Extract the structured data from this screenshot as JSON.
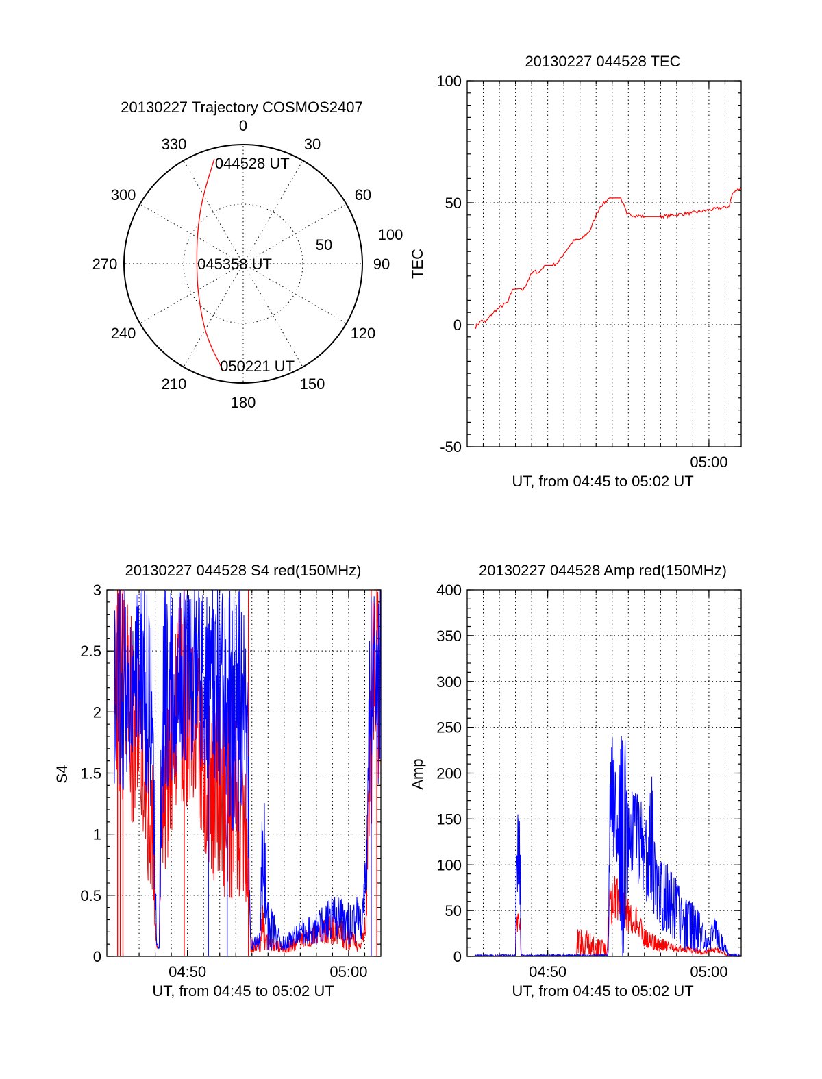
{
  "chart_data": [
    {
      "type": "polar",
      "title": "20130227 Trajectory COSMOS2407",
      "rlim": [
        0,
        100
      ],
      "angle_ticks": [
        "0",
        "30",
        "60",
        "90",
        "120",
        "150",
        "180",
        "210",
        "240",
        "270",
        "300",
        "330"
      ],
      "radial_ticks": [
        "50",
        "100"
      ],
      "grid": true,
      "series": [
        {
          "color": "#ff0000",
          "points": [
            {
              "az": 344.6,
              "r": 91.2
            },
            {
              "az": 327.7,
              "r": 64.6
            },
            {
              "az": 303.9,
              "r": 46.4
            },
            {
              "az": 270.0,
              "r": 39.0
            },
            {
              "az": 235.7,
              "r": 45.9
            },
            {
              "az": 207.6,
              "r": 68.1
            },
            {
              "az": 190.9,
              "r": 90.7
            }
          ]
        }
      ],
      "annotations": [
        {
          "text": "044528 UT",
          "az": 344.6,
          "r": 91.2
        },
        {
          "text": "045358 UT",
          "az": 270.0,
          "r": 39.0
        },
        {
          "text": "050221 UT",
          "az": 190.9,
          "r": 90.7
        }
      ]
    },
    {
      "type": "line",
      "title": "20130227 044528 TEC",
      "xlabel": "UT, from 04:45 to 05:02 UT",
      "ylabel": "TEC",
      "xlim": [
        "04:45:00",
        "05:02:00"
      ],
      "ylim": [
        -50,
        100
      ],
      "yticks": [
        "-50",
        "0",
        "50",
        "100"
      ],
      "xticks": [
        {
          "t": "05:00:00",
          "label": "05:00"
        }
      ],
      "grid": true,
      "series": [
        {
          "color": "#ff0000",
          "x": [
            "04:45:28",
            "04:45:55",
            "04:46:08",
            "04:46:33",
            "04:46:59",
            "04:47:32",
            "04:47:49",
            "04:48:21",
            "04:48:28",
            "04:48:53",
            "04:49:10",
            "04:49:27",
            "04:49:48",
            "04:50:18",
            "04:50:39",
            "04:51:00",
            "04:51:34",
            "04:52:08",
            "04:52:38",
            "04:52:59",
            "04:53:16",
            "04:53:50",
            "04:54:32",
            "04:54:40",
            "04:54:55",
            "04:56:05",
            "04:56:56",
            "04:58:54",
            "05:01:14",
            "05:01:28",
            "05:02:00"
          ],
          "y": [
            -1.2,
            2,
            1,
            4.6,
            7,
            9.3,
            14.5,
            14.8,
            14,
            19.7,
            22,
            21.4,
            24.3,
            24.3,
            25.5,
            29.2,
            34.2,
            35.3,
            38.8,
            44.6,
            48.6,
            52,
            52,
            49.8,
            45.2,
            44.3,
            44.3,
            45.8,
            48.4,
            53.9,
            56.4
          ]
        }
      ]
    },
    {
      "type": "line",
      "title": "20130227 044528 S4 red(150MHz)",
      "xlabel": "UT, from 04:45 to 05:02 UT",
      "ylabel": "S4",
      "xlim": [
        "04:45:00",
        "05:02:00"
      ],
      "ylim": [
        0,
        3
      ],
      "yticks": [
        "0",
        "0.5",
        "1",
        "1.5",
        "2",
        "2.5",
        "3"
      ],
      "xticks": [
        {
          "t": "04:50:00",
          "label": "04:50"
        },
        {
          "t": "05:00:00",
          "label": "05:00"
        }
      ],
      "grid": true,
      "series": [
        {
          "color": "#ff0000",
          "x": [
            "04:45:28",
            "04:46:00",
            "04:46:30",
            "04:47:00",
            "04:47:20",
            "04:47:50",
            "04:48:05",
            "04:48:15",
            "04:48:20",
            "04:48:40",
            "04:49:00",
            "04:49:30",
            "04:50:00",
            "04:50:30",
            "04:51:00",
            "04:51:30",
            "04:52:00",
            "04:52:30",
            "04:53:00",
            "04:53:30",
            "04:53:47",
            "04:53:55",
            "04:54:30",
            "04:54:40",
            "04:54:48",
            "04:56:00",
            "04:57:00",
            "04:58:00",
            "04:59:00",
            "05:00:00",
            "05:00:45",
            "05:01:05",
            "05:01:20",
            "05:01:58"
          ],
          "low": [
            1.5,
            1.2,
            1.0,
            1.3,
            0.7,
            0.5,
            0.04,
            0.04,
            0.4,
            0.7,
            1.0,
            1.3,
            1.2,
            1.3,
            0.9,
            0.6,
            0.6,
            0.4,
            0.5,
            0.4,
            0.5,
            0.03,
            0.03,
            0.1,
            0.05,
            0.03,
            0.05,
            0.1,
            0.1,
            0.05,
            0.03,
            0.2,
            1.0,
            1.5
          ],
          "high": [
            3,
            3,
            2.8,
            2.5,
            2.0,
            1.6,
            0.1,
            0.1,
            1.5,
            1.8,
            2.8,
            3,
            2.6,
            2.6,
            2.2,
            2.0,
            2.2,
            2.3,
            2.0,
            1.6,
            1.5,
            0.15,
            0.15,
            0.6,
            0.2,
            0.1,
            0.2,
            0.25,
            0.35,
            0.25,
            0.1,
            0.5,
            3,
            3
          ],
          "spikes": [
            "04:45:40",
            "04:45:50",
            "04:46:00",
            "04:49:48",
            "04:53:47",
            "05:01:24",
            "05:01:45"
          ]
        },
        {
          "color": "#0000ff",
          "x": [
            "04:45:28",
            "04:46:00",
            "04:46:30",
            "04:47:00",
            "04:47:30",
            "04:47:50",
            "04:48:05",
            "04:48:15",
            "04:48:25",
            "04:48:50",
            "04:49:30",
            "04:50:00",
            "04:50:30",
            "04:51:00",
            "04:51:30",
            "04:52:00",
            "04:52:30",
            "04:53:00",
            "04:53:30",
            "04:53:47",
            "04:53:55",
            "04:54:30",
            "04:54:38",
            "04:54:45",
            "04:54:52",
            "04:56:00",
            "04:57:00",
            "04:58:00",
            "04:59:00",
            "05:00:00",
            "05:00:30",
            "05:00:50",
            "05:01:10",
            "05:01:20",
            "05:01:58"
          ],
          "low": [
            1.4,
            1.35,
            1.6,
            1.8,
            1.3,
            1.1,
            0.06,
            0.06,
            0.9,
            1.3,
            1.5,
            1.6,
            1.6,
            1.5,
            1.4,
            1.4,
            1.2,
            0.9,
            1.1,
            0.8,
            0.05,
            0.05,
            0.3,
            0.5,
            0.05,
            0.05,
            0.1,
            0.1,
            0.15,
            0.1,
            0.1,
            0.15,
            0.6,
            1.5,
            1.3
          ],
          "high": [
            3,
            3,
            3,
            3,
            3,
            2.6,
            0.12,
            0.12,
            3,
            3,
            3,
            3,
            3,
            3,
            3,
            3,
            3,
            3,
            3,
            2.0,
            0.15,
            0.2,
            1.3,
            2.28,
            0.5,
            0.15,
            0.3,
            0.35,
            0.5,
            0.45,
            0.5,
            0.35,
            1.2,
            3,
            3
          ],
          "drops": [
            "04:51:18",
            "04:52:28",
            "05:01:24"
          ]
        }
      ]
    },
    {
      "type": "line",
      "title": "20130227 044528 Amp red(150MHz)",
      "xlabel": "UT, from 04:45 to 05:02 UT",
      "ylabel": "Amp",
      "xlim": [
        "04:45:00",
        "05:02:00"
      ],
      "ylim": [
        0,
        400
      ],
      "yticks": [
        "0",
        "50",
        "100",
        "150",
        "200",
        "250",
        "300",
        "350",
        "400"
      ],
      "xticks": [
        {
          "t": "04:50:00",
          "label": "04:50"
        },
        {
          "t": "05:00:00",
          "label": "05:00"
        }
      ],
      "grid": true,
      "series": [
        {
          "color": "#ff0000",
          "x": [
            "04:45:28",
            "04:48:00",
            "04:48:04",
            "04:48:18",
            "04:48:20",
            "04:51:45",
            "04:51:50",
            "04:52:30",
            "04:53:00",
            "04:53:30",
            "04:53:40",
            "04:53:50",
            "04:54:10",
            "04:54:30",
            "04:55:00",
            "04:55:30",
            "04:56:00",
            "04:57:00",
            "04:58:00",
            "04:59:00",
            "04:59:40",
            "05:00:10",
            "05:00:50",
            "05:01:05",
            "05:02:00"
          ],
          "low": [
            0,
            0,
            25,
            25,
            0,
            0,
            0,
            0,
            0,
            0,
            0,
            30,
            38,
            40,
            25,
            25,
            10,
            5,
            5,
            4,
            1,
            5,
            3,
            0,
            0
          ],
          "high": [
            1,
            1,
            50,
            45,
            1,
            1,
            30,
            28,
            20,
            18,
            2,
            80,
            88,
            85,
            66,
            55,
            30,
            20,
            12,
            12,
            5,
            10,
            8,
            2,
            1
          ]
        },
        {
          "color": "#0000ff",
          "x": [
            "04:45:28",
            "04:48:00",
            "04:48:04",
            "04:48:18",
            "04:48:20",
            "04:53:45",
            "04:53:50",
            "04:54:00",
            "04:54:20",
            "04:54:34",
            "04:54:55",
            "04:55:00",
            "04:55:30",
            "04:56:00",
            "04:56:15",
            "04:56:25",
            "04:56:45",
            "04:57:30",
            "04:58:00",
            "04:58:30",
            "04:59:00",
            "04:59:30",
            "04:59:55",
            "05:00:20",
            "05:00:40",
            "05:01:00",
            "05:01:15",
            "05:02:00"
          ],
          "low": [
            0,
            0,
            60,
            55,
            0,
            0,
            80,
            110,
            100,
            0,
            0,
            90,
            85,
            60,
            50,
            60,
            30,
            25,
            15,
            5,
            5,
            5,
            5,
            10,
            8,
            2,
            0,
            0
          ],
          "high": [
            2,
            2,
            171,
            150,
            2,
            2,
            200,
            239,
            230,
            240,
            240,
            180,
            183,
            160,
            150,
            208,
            110,
            100,
            85,
            63,
            60,
            45,
            20,
            44,
            30,
            15,
            3,
            2
          ]
        }
      ]
    }
  ]
}
